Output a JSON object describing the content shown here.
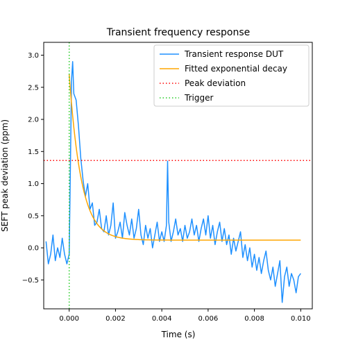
{
  "chart_data": {
    "type": "line",
    "title": "Transient frequency response",
    "xlabel": "Time (s)",
    "ylabel": "SEFT peak deviation (ppm)",
    "xlim": [
      -0.0011,
      0.0105
    ],
    "ylim": [
      -0.95,
      3.2
    ],
    "x_ticks": [
      0.0,
      0.002,
      0.004,
      0.006,
      0.008,
      0.01
    ],
    "x_tick_labels": [
      "0.000",
      "0.002",
      "0.004",
      "0.006",
      "0.008",
      "0.010"
    ],
    "y_ticks": [
      -0.5,
      0.0,
      0.5,
      1.0,
      1.5,
      2.0,
      2.5,
      3.0
    ],
    "y_tick_labels": [
      "−0.5",
      "0.0",
      "0.5",
      "1.0",
      "1.5",
      "2.0",
      "2.5",
      "3.0"
    ],
    "legend_position": "top-right",
    "grid": false,
    "series": [
      {
        "name": "Transient response DUT",
        "color": "#1e90ff",
        "style": "solid",
        "x": [
          -0.001,
          -0.0009,
          -0.0008,
          -0.0007,
          -0.0006,
          -0.0005,
          -0.0004,
          -0.0003,
          -0.0002,
          -0.0001,
          0.0,
          5e-05,
          0.0001,
          0.00015,
          0.0002,
          0.0003,
          0.0004,
          0.0005,
          0.0006,
          0.0007,
          0.0008,
          0.0009,
          0.001,
          0.0011,
          0.0012,
          0.0013,
          0.0014,
          0.0015,
          0.0016,
          0.0017,
          0.0018,
          0.0019,
          0.002,
          0.0021,
          0.0022,
          0.0023,
          0.0024,
          0.0025,
          0.0026,
          0.0027,
          0.0028,
          0.0029,
          0.003,
          0.0031,
          0.0032,
          0.0033,
          0.0034,
          0.0035,
          0.0036,
          0.0037,
          0.0038,
          0.0039,
          0.004,
          0.0041,
          0.0042,
          0.00425,
          0.0043,
          0.0044,
          0.0045,
          0.0046,
          0.0047,
          0.0048,
          0.0049,
          0.005,
          0.0051,
          0.0052,
          0.0053,
          0.0054,
          0.0055,
          0.0056,
          0.0057,
          0.0058,
          0.0059,
          0.006,
          0.0061,
          0.0062,
          0.0063,
          0.0064,
          0.0065,
          0.0066,
          0.0067,
          0.0068,
          0.0069,
          0.007,
          0.0071,
          0.0072,
          0.0073,
          0.0074,
          0.0075,
          0.0076,
          0.0077,
          0.0078,
          0.0079,
          0.008,
          0.0081,
          0.0082,
          0.0083,
          0.0084,
          0.0085,
          0.0086,
          0.0087,
          0.0088,
          0.0089,
          0.009,
          0.0091,
          0.0092,
          0.0093,
          0.0094,
          0.0095,
          0.0096,
          0.0097,
          0.0098,
          0.0099,
          0.01
        ],
        "y": [
          0.1,
          -0.25,
          -0.1,
          0.2,
          -0.2,
          0.0,
          -0.15,
          0.15,
          -0.1,
          -0.25,
          -0.1,
          1.2,
          2.6,
          2.9,
          2.4,
          2.3,
          1.9,
          1.4,
          1.05,
          0.8,
          1.0,
          0.6,
          0.7,
          0.35,
          0.4,
          0.6,
          0.3,
          0.25,
          0.5,
          0.2,
          0.35,
          0.7,
          0.15,
          0.25,
          0.4,
          0.15,
          0.55,
          0.35,
          0.2,
          0.45,
          0.15,
          0.3,
          0.6,
          0.2,
          0.05,
          0.35,
          0.15,
          0.3,
          0.0,
          0.2,
          0.4,
          0.1,
          0.25,
          0.1,
          0.35,
          1.35,
          0.4,
          0.1,
          0.25,
          0.45,
          0.2,
          0.3,
          0.1,
          0.35,
          0.15,
          0.25,
          0.45,
          0.2,
          0.35,
          0.1,
          0.3,
          0.45,
          0.2,
          0.5,
          0.15,
          0.35,
          0.05,
          0.25,
          0.4,
          0.1,
          0.3,
          0.05,
          0.2,
          -0.1,
          0.15,
          -0.05,
          0.1,
          0.25,
          -0.15,
          0.05,
          -0.2,
          0.0,
          -0.3,
          -0.1,
          -0.35,
          -0.15,
          -0.4,
          -0.2,
          -0.05,
          -0.35,
          -0.5,
          -0.3,
          -0.6,
          -0.4,
          -0.2,
          -0.85,
          -0.45,
          -0.3,
          -0.6,
          -0.4,
          -0.5,
          -0.7,
          -0.45,
          -0.4
        ]
      },
      {
        "name": "Fitted exponential decay",
        "color": "#ffa500",
        "style": "solid",
        "model": {
          "baseline": 0.12,
          "amplitude": 2.58,
          "tau": 0.00052,
          "t_start": 0.0,
          "t_end": 0.01
        }
      },
      {
        "name": "Peak deviation",
        "color": "#ff0000",
        "style": "dotted",
        "orientation": "horizontal",
        "value": 1.36
      },
      {
        "name": "Trigger",
        "color": "#22cc22",
        "style": "dotted",
        "orientation": "vertical",
        "value": 0.0
      }
    ]
  }
}
